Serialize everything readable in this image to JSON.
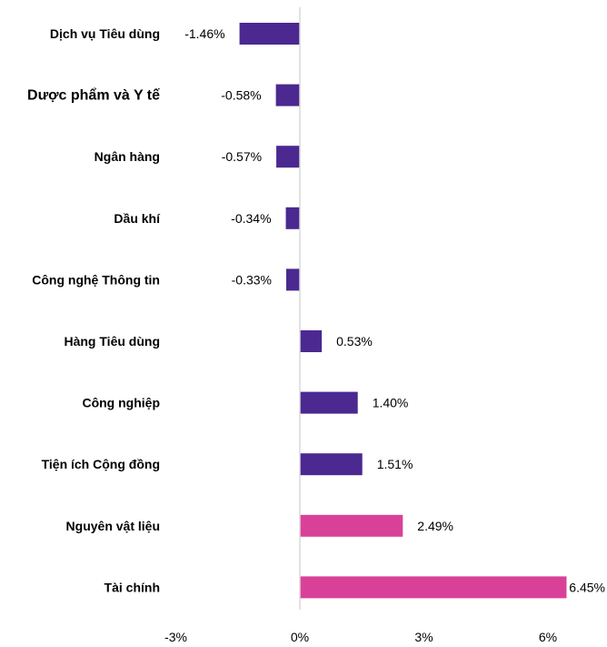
{
  "chart_data": {
    "type": "bar",
    "orientation": "horizontal",
    "title": "",
    "xlabel": "",
    "ylabel": "",
    "categories": [
      "Dịch vụ Tiêu dùng",
      "Dược phẩm và Y tế",
      "Ngân hàng",
      "Dầu khí",
      "Công nghệ Thông tin",
      "Hàng Tiêu dùng",
      "Công nghiệp",
      "Tiện ích Cộng đồng",
      "Nguyên vật liệu",
      "Tài chính"
    ],
    "values": [
      -1.46,
      -0.58,
      -0.57,
      -0.34,
      -0.33,
      0.53,
      1.4,
      1.51,
      2.49,
      6.45
    ],
    "value_labels": [
      "-1.46%",
      "-0.58%",
      "-0.57%",
      "-0.34%",
      "-0.33%",
      "0.53%",
      "1.40%",
      "1.51%",
      "2.49%",
      "6.45%"
    ],
    "bar_colors": [
      "#4b2990",
      "#4b2990",
      "#4b2990",
      "#4b2990",
      "#4b2990",
      "#4b2990",
      "#4b2990",
      "#4b2990",
      "#d94199",
      "#d94199"
    ],
    "xlim": [
      -3,
      7
    ],
    "x_ticks": [
      -3,
      0,
      3,
      6
    ],
    "x_tick_labels": [
      "-3%",
      "0%",
      "3%",
      "6%"
    ],
    "grid": false,
    "legend": "none",
    "zero_line_color": "#d9d9d9"
  }
}
